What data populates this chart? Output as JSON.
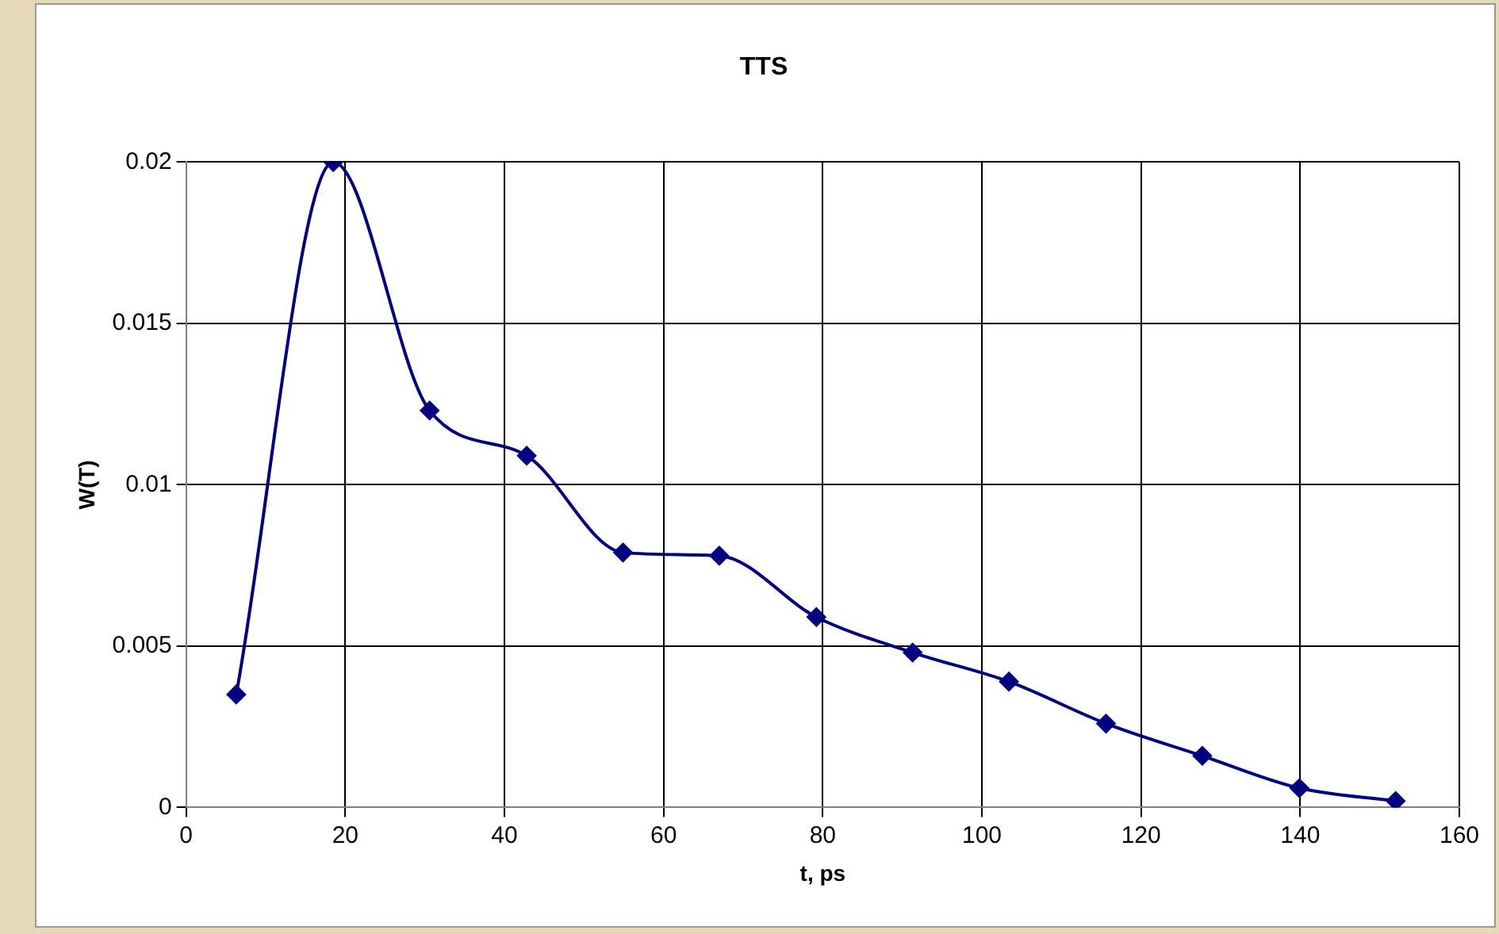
{
  "chart_data": {
    "type": "line",
    "title": "TTS",
    "xlabel": "t, ps",
    "ylabel": "W(T)",
    "x": [
      6.3,
      18.5,
      30.6,
      42.8,
      54.9,
      67.0,
      79.2,
      91.3,
      103.4,
      115.6,
      127.7,
      139.9,
      152.0
    ],
    "series": [
      {
        "color": "#000080",
        "values": [
          0.0035,
          0.02,
          0.0123,
          0.0109,
          0.0079,
          0.0078,
          0.0059,
          0.0048,
          0.0039,
          0.0026,
          0.0016,
          0.0006,
          0.0002
        ]
      }
    ],
    "xlim": [
      0,
      160
    ],
    "xticks": [
      0,
      20,
      40,
      60,
      80,
      100,
      120,
      140,
      160
    ],
    "ylim": [
      0,
      0.02
    ],
    "yticks": [
      0,
      0.005,
      0.01,
      0.015,
      0.02
    ],
    "grid": true,
    "legend": false,
    "marker": "diamond",
    "line_style": "solid"
  }
}
